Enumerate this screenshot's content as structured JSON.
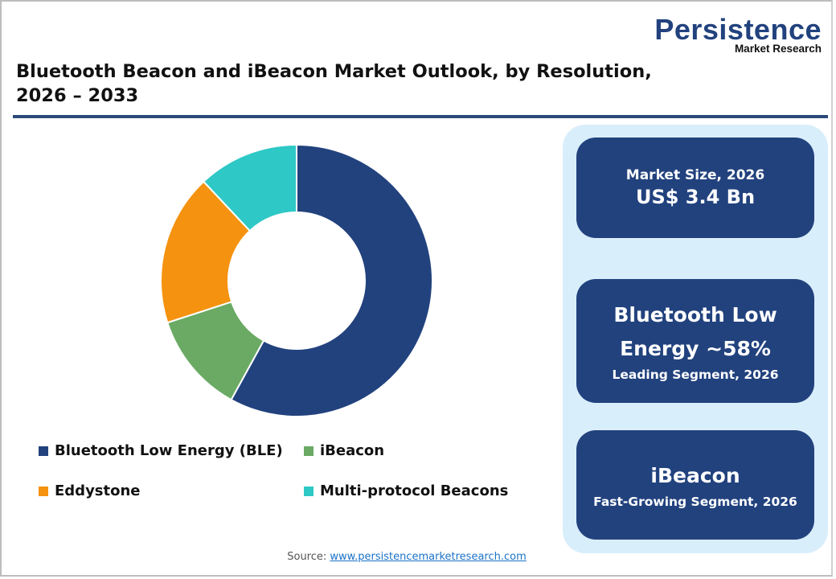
{
  "brand": {
    "logo_main": "Persistence",
    "logo_sub": "Market Research",
    "color": "#22427e"
  },
  "header": {
    "title_line1": "Bluetooth Beacon and iBeacon Market Outlook, by Resolution,",
    "title_line2": "2026 – 2033"
  },
  "chart_data": {
    "type": "pie",
    "subtype": "donut",
    "title": "Bluetooth Beacon and iBeacon Market Outlook, by Resolution, 2026 – 2033",
    "categories": [
      "Bluetooth Low Energy (BLE)",
      "iBeacon",
      "Eddystone",
      "Multi-protocol Beacons"
    ],
    "values": [
      58,
      12,
      18,
      12
    ],
    "unit": "%",
    "colors": [
      "#22427e",
      "#6aaa64",
      "#f5920f",
      "#2ec8c6"
    ],
    "start_angle_deg": 0,
    "direction": "clockwise",
    "legend_position": "bottom"
  },
  "legend": {
    "items": [
      {
        "label": "Bluetooth Low Energy (BLE)",
        "color": "#22427e"
      },
      {
        "label": "iBeacon",
        "color": "#6aaa64"
      },
      {
        "label": "Eddystone",
        "color": "#f5920f"
      },
      {
        "label": "Multi-protocol Beacons",
        "color": "#2ec8c6"
      }
    ]
  },
  "cards": {
    "market_size": {
      "label": "Market Size, 2026",
      "value": "US$ 3.4 Bn"
    },
    "leading": {
      "line1": "Bluetooth Low",
      "line2": "Energy ~58%",
      "sub": "Leading Segment, 2026"
    },
    "fast_growing": {
      "title": "iBeacon",
      "sub": "Fast-Growing Segment, 2026"
    }
  },
  "footer": {
    "source_label": "Source:",
    "source_link": "www.persistencemarketresearch.com"
  }
}
